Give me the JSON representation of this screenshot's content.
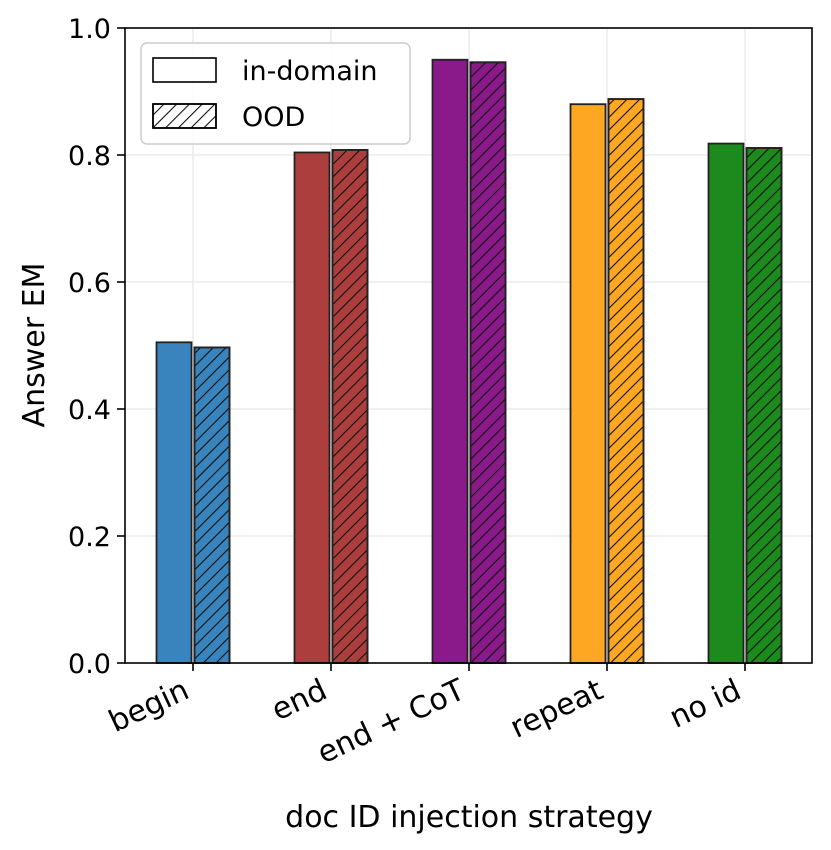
{
  "chart_data": {
    "type": "bar",
    "title": "",
    "xlabel": "doc ID injection strategy",
    "ylabel": "Answer EM",
    "ylim": [
      0,
      1.0
    ],
    "yticks": [
      0.0,
      0.2,
      0.4,
      0.6,
      0.8,
      1.0
    ],
    "ytick_labels": [
      "0.0",
      "0.2",
      "0.4",
      "0.6",
      "0.8",
      "1.0"
    ],
    "grid": true,
    "legend_position": "top-left",
    "categories": [
      "begin",
      "end",
      "end + CoT",
      "repeat",
      "no id"
    ],
    "category_colors": [
      "#3a84bd",
      "#ac3f3e",
      "#8a1a89",
      "#fda723",
      "#1c8a1c"
    ],
    "series": [
      {
        "name": "in-domain",
        "pattern": "solid",
        "values": [
          0.505,
          0.804,
          0.95,
          0.88,
          0.818
        ]
      },
      {
        "name": "OOD",
        "pattern": "hatched",
        "values": [
          0.497,
          0.808,
          0.946,
          0.888,
          0.811
        ]
      }
    ]
  }
}
